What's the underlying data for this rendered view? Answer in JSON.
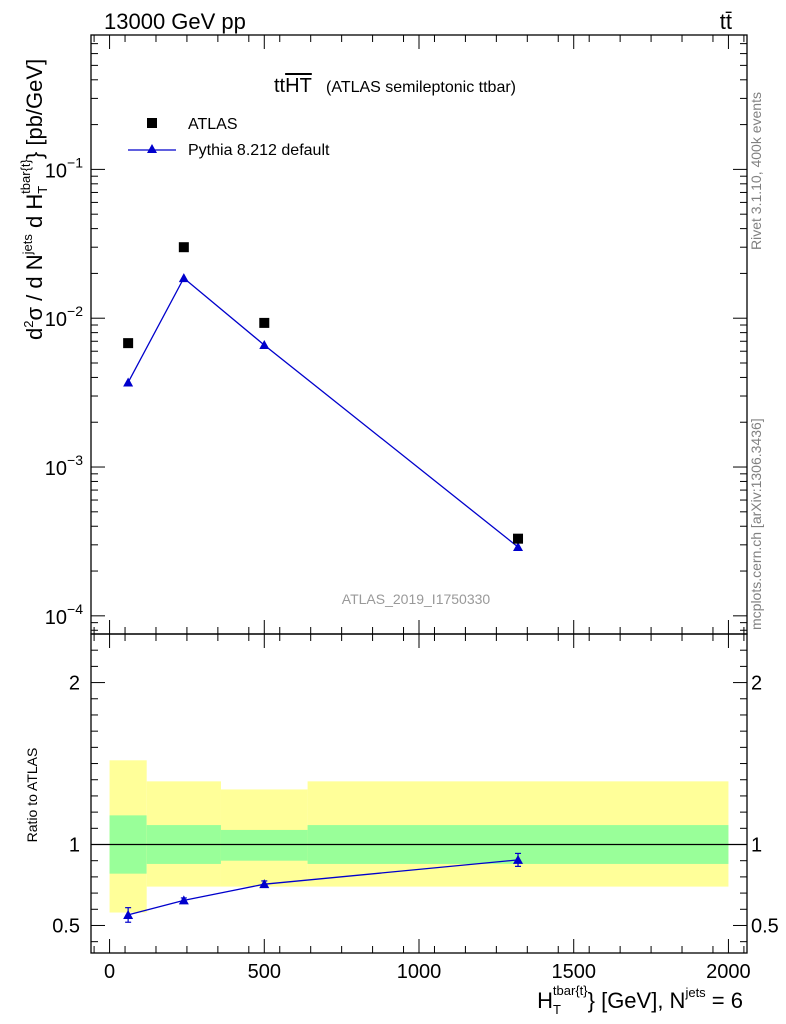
{
  "header": {
    "energy_label": "13000 GeV pp",
    "process_label": "tt̄"
  },
  "plot": {
    "title_main": "tt",
    "title_overline": "HT",
    "title_sub": "(ATLAS semileptonic ttbar)",
    "analysis_id": "ATLAS_2019_I1750330",
    "side_label_top": "Rivet 3.1.10,  400k events",
    "side_label_bottom": "mcplots.cern.ch [arXiv:1306.3436]",
    "ratio_ylabel": "Ratio to ATLAS",
    "ylabel": {
      "d": "d",
      "sup2": "2",
      "sigma_part": "σ / d N",
      "jets_sup": "jets",
      "d_h": " d H",
      "t_sub": "T",
      "tbar_sup": "tbar{t}",
      "unit": "} [pb/GeV]"
    },
    "xlabel": {
      "h": "H",
      "t_sub": "T",
      "tbar_sup": "tbar{t}",
      "mid": "} [GeV], N",
      "jets_sup": "jets",
      "eq": " = 6"
    }
  },
  "legend": {
    "data_label": "ATLAS",
    "mc_label": "Pythia 8.212 default"
  },
  "colors": {
    "mc": "#0000cc",
    "data": "#000000",
    "band_inner": "#99ff99",
    "band_outer": "#ffff99"
  },
  "chart_data": {
    "type": "scatter",
    "title": "ttHT (ATLAS semileptonic ttbar)",
    "xlabel": "H_T^{tbar{t}} [GeV], N^{jets} = 6",
    "ylabel": "d²σ / d N^{jets} d H_T^{tbar{t}} [pb/GeV]",
    "xlim": [
      -60,
      2060
    ],
    "ylim": [
      7.55e-05,
      0.8
    ],
    "yscale": "log",
    "x_ticks": [
      0,
      500,
      1000,
      1500,
      2000
    ],
    "x_tick_labels": [
      "0",
      "500",
      "1000",
      "1500",
      "2000"
    ],
    "y_ticks": [
      0.0001,
      0.001,
      0.01,
      0.1
    ],
    "y_tick_labels": [
      {
        "base": "10",
        "exp": "−4"
      },
      {
        "base": "10",
        "exp": "−3"
      },
      {
        "base": "10",
        "exp": "−2"
      },
      {
        "base": "10",
        "exp": "−1"
      }
    ],
    "bins": [
      [
        0,
        120
      ],
      [
        120,
        360
      ],
      [
        360,
        640
      ],
      [
        640,
        2000
      ]
    ],
    "series": [
      {
        "name": "ATLAS",
        "marker": "square",
        "x": [
          60,
          240,
          500,
          1320
        ],
        "y": [
          0.0068,
          0.03,
          0.0093,
          0.00033
        ]
      },
      {
        "name": "Pythia 8.212 default",
        "marker": "triangle",
        "x": [
          60,
          240,
          500,
          1320
        ],
        "y": [
          0.0037,
          0.0186,
          0.0066,
          0.00029
        ]
      }
    ],
    "ratio": {
      "ylabel": "Ratio to ATLAS",
      "ylim": [
        0.33,
        2.3
      ],
      "y_ticks": [
        0.5,
        1,
        2
      ],
      "y_tick_labels": [
        "0.5",
        "1",
        "2"
      ],
      "mc_x": [
        60,
        240,
        500,
        1320
      ],
      "mc_values": [
        0.565,
        0.655,
        0.755,
        0.905
      ],
      "mc_errors": [
        0.045,
        0.015,
        0.02,
        0.04
      ],
      "band_inner": [
        [
          0.82,
          1.18
        ],
        [
          0.88,
          1.12
        ],
        [
          0.9,
          1.09
        ],
        [
          0.88,
          1.12
        ]
      ],
      "band_outer": [
        [
          0.58,
          1.52
        ],
        [
          0.74,
          1.39
        ],
        [
          0.74,
          1.34
        ],
        [
          0.74,
          1.39
        ]
      ]
    }
  }
}
